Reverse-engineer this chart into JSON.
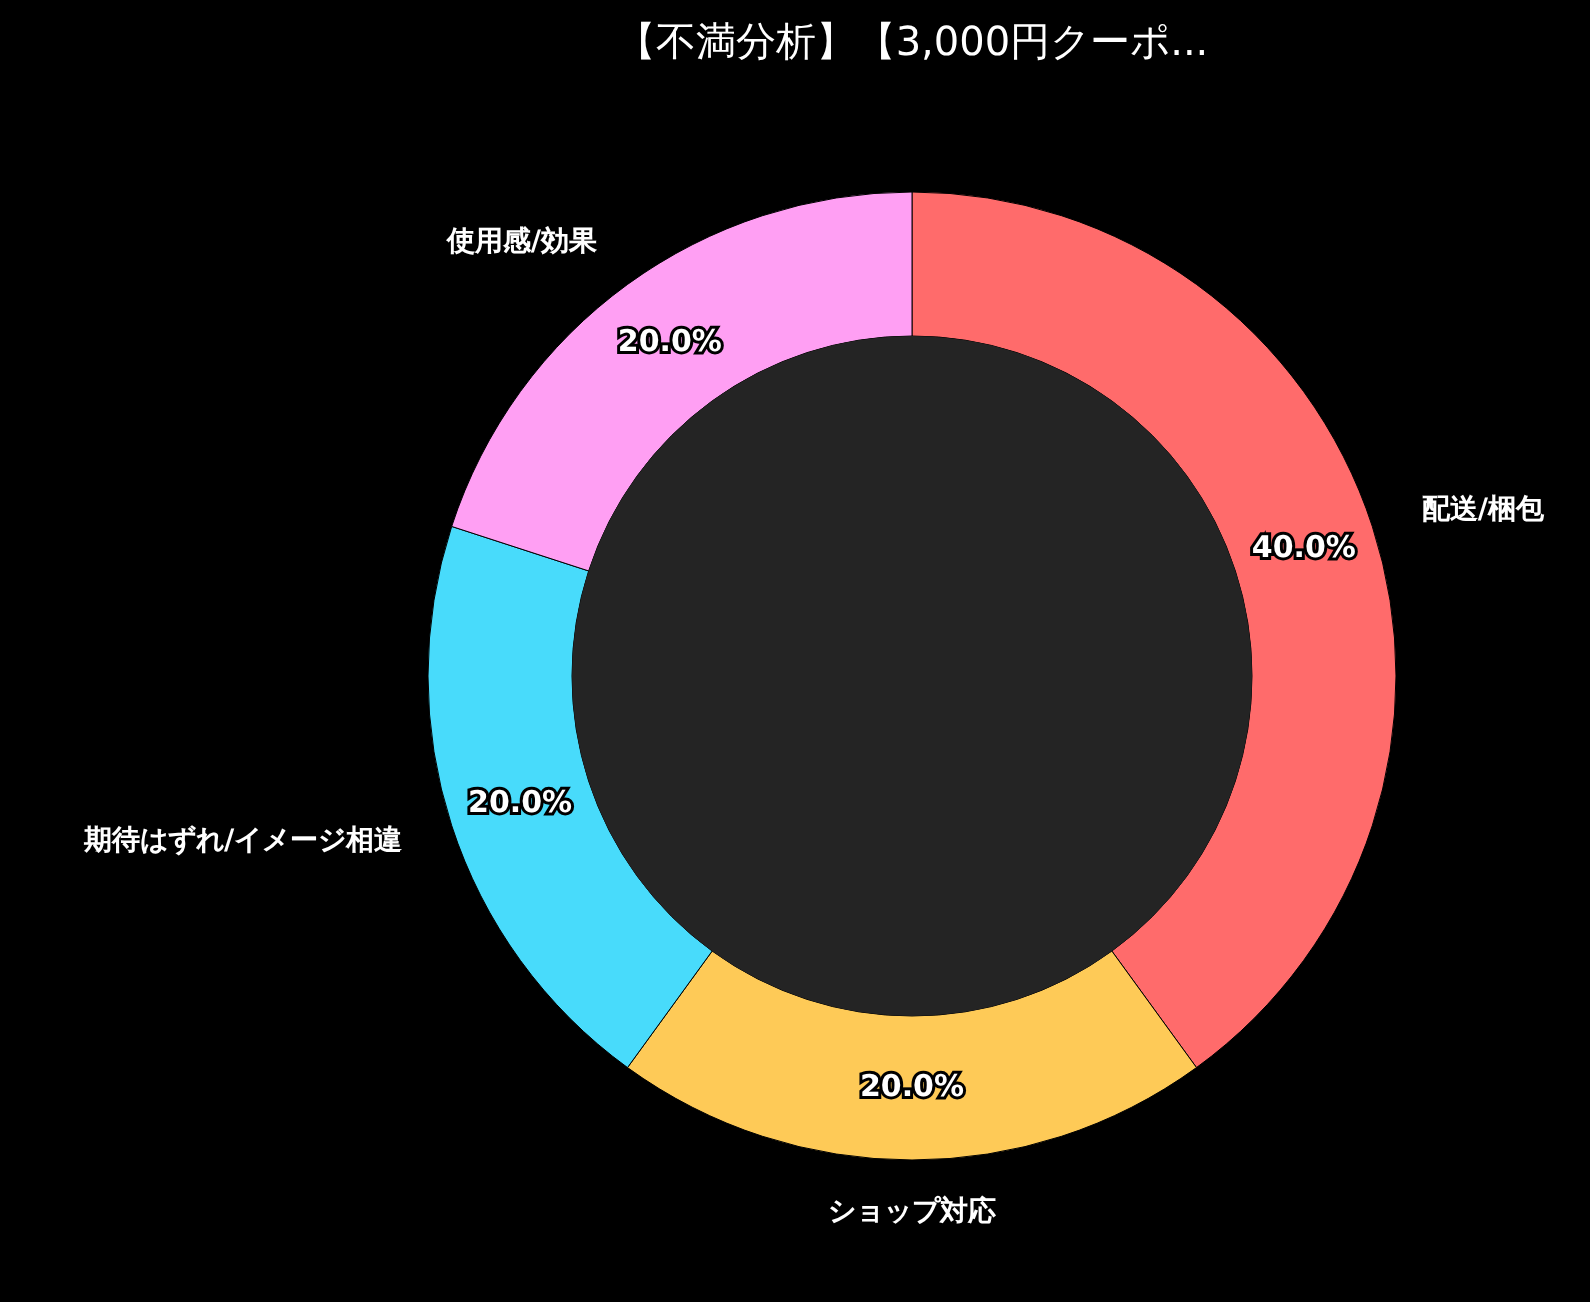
{
  "chart_data": {
    "type": "donut",
    "title": "【不満分析】【3,000円クーポ...",
    "categories": [
      "配送/梱包",
      "ショップ対応",
      "期待はずれ/イメージ相違",
      "使用感/効果"
    ],
    "values": [
      40,
      20,
      20,
      20
    ],
    "colors": [
      "#ff6b6b",
      "#feca57",
      "#48dbfb",
      "#ff9ff3"
    ],
    "value_labels": [
      "40.0%",
      "20.0%",
      "20.0%",
      "20.0%"
    ]
  }
}
